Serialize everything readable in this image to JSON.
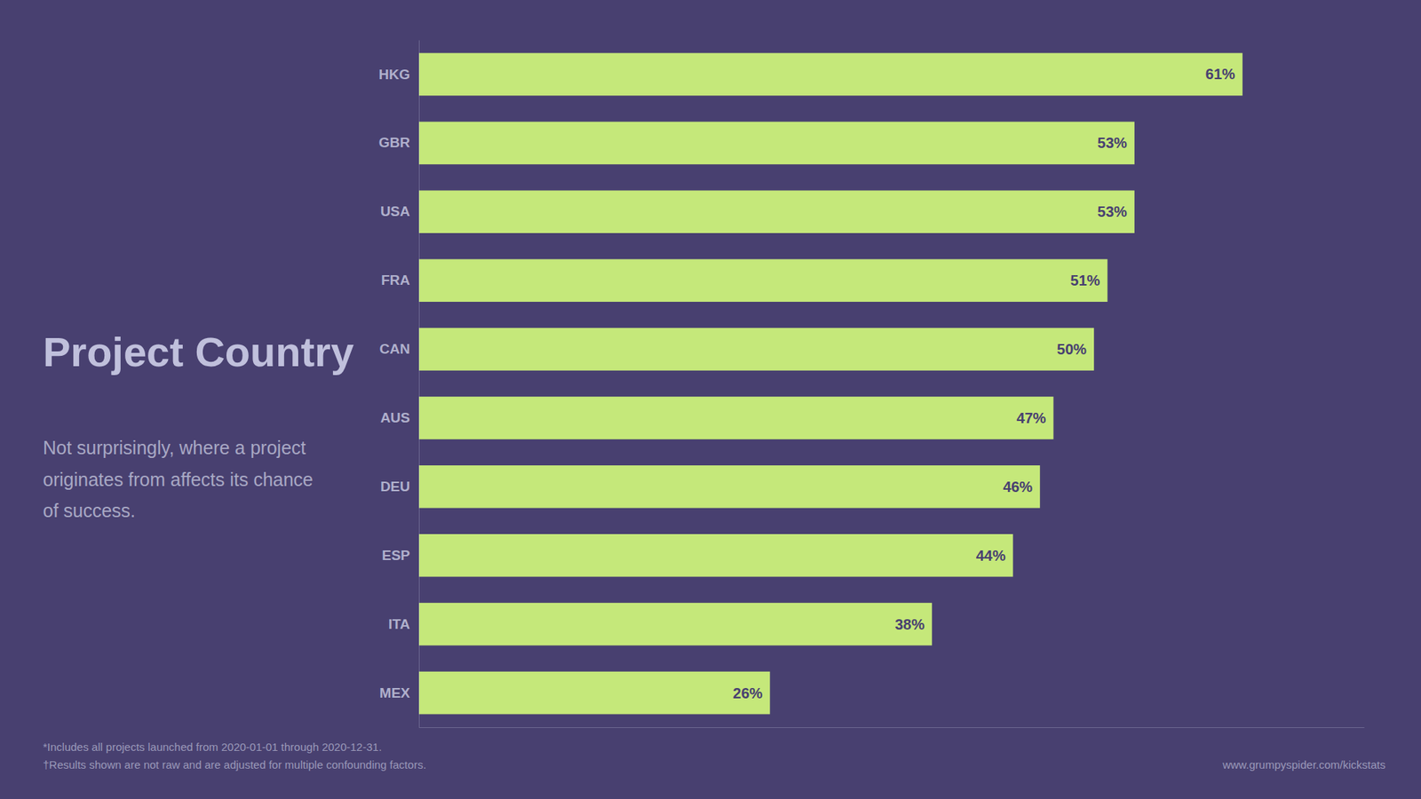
{
  "chart_data": {
    "type": "bar",
    "orientation": "horizontal",
    "title": "Project Country",
    "subtitle": "Not surprisingly, where a project\noriginates from affects its chance\nof success.",
    "annotations": [
      "*Includes all projects launched from 2020-01-01  through 2020-12-31.",
      "†Results shown are not raw and are adjusted for multiple confounding factors.",
      "www.grumpyspider.com/kickstats"
    ],
    "categories": [
      "HKG",
      "GBR",
      "USA",
      "FRA",
      "CAN",
      "AUS",
      "DEU",
      "ESP",
      "ITA",
      "MEX"
    ],
    "values": [
      61,
      53,
      53,
      51,
      50,
      47,
      46,
      44,
      38,
      26
    ],
    "value_labels": [
      "61%",
      "53%",
      "53%",
      "51%",
      "50%",
      "47%",
      "46%",
      "44%",
      "38%",
      "26%"
    ],
    "data_labels": true,
    "color": "#c5e87a",
    "xlim": [
      0,
      70
    ],
    "tick_labels": "y",
    "grid": false
  }
}
